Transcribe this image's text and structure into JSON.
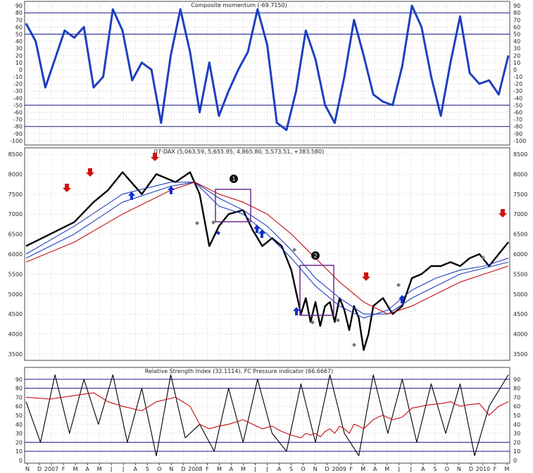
{
  "chart_data": [
    {
      "type": "line",
      "title": "Composite momentum (-69.7150)",
      "ylim": [
        -100,
        90
      ],
      "yticks": [
        90,
        80,
        70,
        60,
        50,
        40,
        30,
        20,
        10,
        0,
        -10,
        -20,
        -30,
        -40,
        -50,
        -60,
        -70,
        -80,
        -90,
        -100
      ],
      "hlines": [
        80,
        50,
        -50,
        -80
      ],
      "series": [
        {
          "color": "#1f3fbf",
          "x": [
            0,
            2,
            4,
            6,
            8,
            10,
            12,
            14,
            16,
            18,
            20,
            22,
            24,
            26,
            28,
            30,
            32,
            34,
            36,
            38,
            40,
            42,
            44,
            46,
            48,
            50,
            52,
            54,
            56,
            58,
            60,
            62,
            64,
            66,
            68,
            70,
            72,
            74,
            76,
            78,
            80,
            82,
            84,
            86,
            88,
            90,
            92,
            94,
            96,
            98,
            100
          ],
          "y": [
            65,
            40,
            -25,
            15,
            55,
            45,
            60,
            -25,
            -10,
            85,
            55,
            -15,
            10,
            0,
            -75,
            20,
            85,
            25,
            -60,
            10,
            -65,
            -30,
            0,
            25,
            85,
            35,
            -75,
            -85,
            -30,
            55,
            15,
            -50,
            -75,
            -10,
            70,
            20,
            -35,
            -45,
            -50,
            5,
            90,
            60,
            -10,
            -65,
            10,
            75,
            -5,
            -20,
            -15,
            -35,
            20
          ]
        }
      ]
    },
    {
      "type": "line",
      "title": "07-DAX (5,063.59, 5,655.95, 4,865.80, 5,573.51, +383.580)",
      "ylim": [
        3500,
        8500
      ],
      "yticks": [
        8500,
        8000,
        7500,
        7000,
        6500,
        6000,
        5500,
        5000,
        4500,
        4000,
        3500
      ],
      "series": [
        {
          "color": "#000000",
          "x": [
            0,
            5,
            10,
            14,
            17,
            20,
            24,
            27,
            31,
            34,
            36,
            38,
            40,
            42,
            45,
            47,
            49,
            51,
            53,
            55,
            57,
            58,
            59,
            60,
            61,
            62,
            63,
            64,
            65,
            66,
            67,
            68,
            69,
            70,
            71,
            72,
            73,
            74,
            76,
            78,
            80,
            82,
            84,
            86,
            88,
            90,
            92,
            94,
            96,
            98,
            100
          ],
          "y": [
            6200,
            6500,
            6800,
            7300,
            7600,
            8050,
            7500,
            8000,
            7800,
            8050,
            7500,
            6200,
            6700,
            7000,
            7100,
            6600,
            6200,
            6400,
            6200,
            5600,
            4500,
            4900,
            4300,
            4800,
            4200,
            4700,
            4800,
            4300,
            4900,
            4600,
            4100,
            4700,
            4400,
            3600,
            4000,
            4700,
            4800,
            4900,
            4500,
            4700,
            5400,
            5500,
            5700,
            5700,
            5800,
            5700,
            5900,
            6000,
            5700,
            6000,
            6300
          ]
        },
        {
          "color": "#1f3fbf",
          "x": [
            0,
            10,
            20,
            30,
            35,
            40,
            45,
            50,
            55,
            60,
            65,
            70,
            75,
            80,
            85,
            90,
            95,
            100
          ],
          "y": [
            6000,
            6700,
            7500,
            7800,
            7800,
            7200,
            7000,
            6500,
            5900,
            5200,
            4700,
            4400,
            4600,
            5100,
            5400,
            5600,
            5700,
            5900
          ]
        },
        {
          "color": "#1f3fbf",
          "x": [
            0,
            10,
            20,
            30,
            35,
            40,
            45,
            50,
            55,
            60,
            65,
            70,
            75,
            80,
            85,
            90,
            95,
            100
          ],
          "y": [
            5900,
            6500,
            7300,
            7700,
            7800,
            7400,
            7100,
            6700,
            6100,
            5400,
            4900,
            4500,
            4500,
            4900,
            5200,
            5500,
            5650,
            5800
          ]
        },
        {
          "color": "#c01010",
          "x": [
            0,
            10,
            20,
            30,
            35,
            40,
            45,
            50,
            55,
            60,
            65,
            70,
            75,
            80,
            85,
            90,
            95,
            100
          ],
          "y": [
            5800,
            6300,
            7000,
            7600,
            7800,
            7500,
            7300,
            7000,
            6500,
            5900,
            5300,
            4800,
            4500,
            4700,
            5000,
            5300,
            5500,
            5700
          ]
        }
      ],
      "annotations": [
        "1",
        "2"
      ]
    },
    {
      "type": "line",
      "title": "Relative Strength Index (32.1114), FC Pressure indicator (66.6667)",
      "ylim": [
        0,
        100
      ],
      "yticks": [
        90,
        80,
        70,
        60,
        50,
        40,
        30,
        20,
        10,
        0
      ],
      "hlines": [
        90,
        80,
        20,
        10
      ],
      "series": [
        {
          "color": "#000000",
          "x": [
            0,
            3,
            6,
            9,
            12,
            15,
            18,
            21,
            24,
            27,
            30,
            33,
            36,
            39,
            42,
            45,
            48,
            51,
            54,
            57,
            60,
            63,
            66,
            69,
            72,
            75,
            78,
            81,
            84,
            87,
            90,
            93,
            96,
            100
          ],
          "y": [
            65,
            20,
            95,
            30,
            90,
            40,
            95,
            20,
            80,
            5,
            95,
            25,
            40,
            10,
            80,
            20,
            90,
            30,
            10,
            85,
            20,
            95,
            30,
            5,
            95,
            30,
            90,
            20,
            85,
            30,
            85,
            5,
            60,
            95
          ]
        },
        {
          "color": "#c01010",
          "x": [
            0,
            5,
            10,
            14,
            17,
            20,
            24,
            27,
            31,
            34,
            36,
            38,
            40,
            42,
            45,
            47,
            49,
            51,
            53,
            55,
            57,
            58,
            59,
            60,
            61,
            62,
            63,
            64,
            65,
            66,
            67,
            68,
            69,
            70,
            71,
            72,
            73,
            74,
            76,
            78,
            80,
            82,
            84,
            86,
            88,
            90,
            92,
            94,
            96,
            98,
            100
          ],
          "y": [
            70,
            68,
            72,
            75,
            65,
            60,
            55,
            65,
            70,
            60,
            40,
            35,
            38,
            40,
            45,
            40,
            35,
            38,
            32,
            28,
            25,
            30,
            28,
            30,
            26,
            32,
            35,
            30,
            38,
            35,
            30,
            40,
            38,
            35,
            40,
            45,
            48,
            50,
            45,
            48,
            58,
            60,
            62,
            63,
            65,
            60,
            62,
            63,
            50,
            60,
            65
          ]
        }
      ]
    }
  ],
  "x_axis": {
    "months": [
      "N",
      "D",
      "2007",
      "F",
      "M",
      "A",
      "M",
      "J",
      "J",
      "A",
      "S",
      "O",
      "N",
      "D",
      "2008",
      "F",
      "M",
      "A",
      "M",
      "J",
      "J",
      "A",
      "S",
      "O",
      "N",
      "D",
      "2009",
      "F",
      "M",
      "A",
      "M",
      "J",
      "J",
      "A",
      "S",
      "O",
      "N",
      "D",
      "2010",
      "F",
      "M"
    ]
  }
}
